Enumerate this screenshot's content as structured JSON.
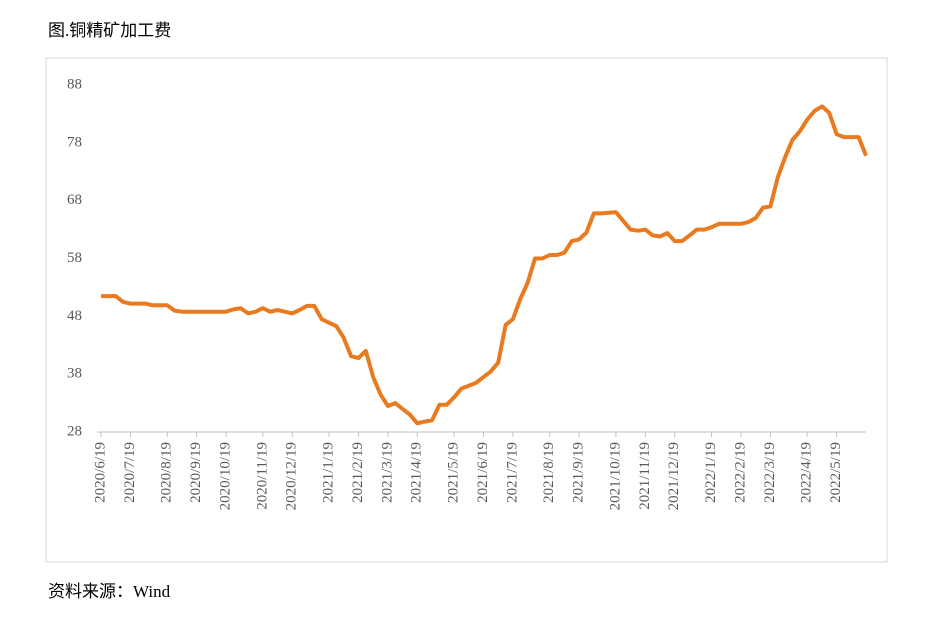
{
  "chart_data": {
    "type": "line",
    "title": "图.铜精矿加工费",
    "source": "资料来源：Wind",
    "categories": [
      "2020/6/19",
      null,
      null,
      null,
      "2020/7/19",
      null,
      null,
      null,
      null,
      "2020/8/19",
      null,
      null,
      null,
      "2020/9/19",
      null,
      null,
      null,
      "2020/10/19",
      null,
      null,
      null,
      null,
      "2020/11/19",
      null,
      null,
      null,
      "2020/12/19",
      null,
      null,
      null,
      null,
      "2021/1/19",
      null,
      null,
      null,
      "2021/2/19",
      null,
      null,
      null,
      "2021/3/19",
      null,
      null,
      null,
      "2021/4/19",
      null,
      null,
      null,
      null,
      "2021/5/19",
      null,
      null,
      null,
      "2021/6/19",
      null,
      null,
      null,
      "2021/7/19",
      null,
      null,
      null,
      null,
      "2021/8/19",
      null,
      null,
      null,
      "2021/9/19",
      null,
      null,
      null,
      null,
      "2021/10/19",
      null,
      null,
      null,
      "2021/11/19",
      null,
      null,
      null,
      "2021/12/19",
      null,
      null,
      null,
      null,
      "2022/1/19",
      null,
      null,
      null,
      "2022/2/19",
      null,
      null,
      null,
      "2022/3/19",
      null,
      null,
      null,
      null,
      "2022/4/19",
      null,
      null,
      null,
      "2022/5/19",
      null,
      null,
      null,
      null
    ],
    "values": [
      51.5,
      51.5,
      51.5,
      50.5,
      50.2,
      50.2,
      50.2,
      49.9,
      49.9,
      49.9,
      49,
      48.8,
      48.8,
      48.8,
      48.8,
      48.8,
      48.8,
      48.8,
      49.2,
      49.4,
      48.5,
      48.8,
      49.4,
      48.8,
      49.1,
      48.8,
      48.5,
      49.1,
      49.8,
      49.8,
      47.5,
      46.9,
      46.3,
      44.3,
      41.1,
      40.8,
      42,
      37.5,
      34.5,
      32.5,
      33,
      32,
      31,
      29.5,
      29.8,
      30,
      32.7,
      32.7,
      34,
      35.5,
      36,
      36.5,
      37.5,
      38.5,
      40,
      46.5,
      47.5,
      51,
      53.8,
      58,
      58,
      58.6,
      58.6,
      59,
      61,
      61.3,
      62.5,
      65.8,
      65.8,
      65.9,
      66,
      64.5,
      63,
      62.8,
      63,
      62,
      61.8,
      62.4,
      61,
      61,
      62,
      63,
      63,
      63.4,
      64,
      64,
      64,
      64,
      64.3,
      65,
      66.8,
      67,
      72,
      75.5,
      78.5,
      80,
      82,
      83.5,
      84.3,
      83.2,
      79.5,
      79,
      79,
      79,
      75.8
    ],
    "color": "#e97a1f",
    "ylim": [
      28,
      88
    ],
    "yticks": [
      28,
      38,
      48,
      58,
      68,
      78,
      88
    ],
    "grid": false
  }
}
